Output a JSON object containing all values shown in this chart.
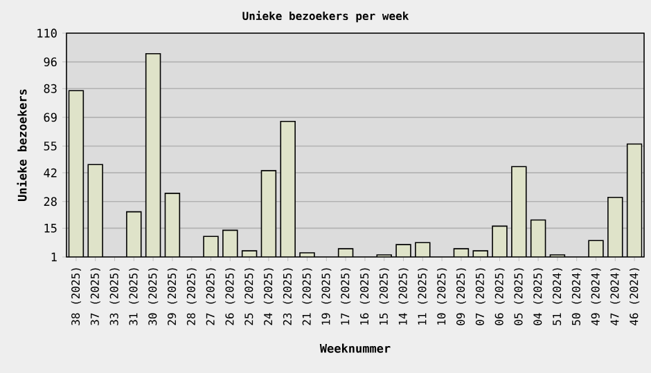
{
  "chart_data": {
    "type": "bar",
    "title": "Unieke bezoekers per week",
    "xlabel": "Weeknummer",
    "ylabel": "Unieke bezoekers",
    "categories": [
      "38 (2025)",
      "37 (2025)",
      "33 (2025)",
      "31 (2025)",
      "30 (2025)",
      "29 (2025)",
      "28 (2025)",
      "27 (2025)",
      "26 (2025)",
      "25 (2025)",
      "24 (2025)",
      "23 (2025)",
      "21 (2025)",
      "19 (2025)",
      "17 (2025)",
      "16 (2025)",
      "15 (2025)",
      "14 (2025)",
      "11 (2025)",
      "10 (2025)",
      "09 (2025)",
      "07 (2025)",
      "06 (2025)",
      "05 (2025)",
      "04 (2025)",
      "51 (2024)",
      "50 (2024)",
      "49 (2024)",
      "47 (2024)",
      "46 (2024)"
    ],
    "values": [
      82,
      46,
      null,
      23,
      100,
      32,
      null,
      11,
      14,
      4,
      43,
      67,
      3,
      null,
      5,
      null,
      2,
      7,
      8,
      null,
      5,
      4,
      16,
      45,
      19,
      2,
      null,
      9,
      30,
      56
    ],
    "color": "#dfe3c9",
    "ylim": [
      1,
      110
    ],
    "yticks": [
      1,
      15,
      28,
      42,
      55,
      69,
      83,
      96,
      110
    ],
    "grid": "y"
  }
}
